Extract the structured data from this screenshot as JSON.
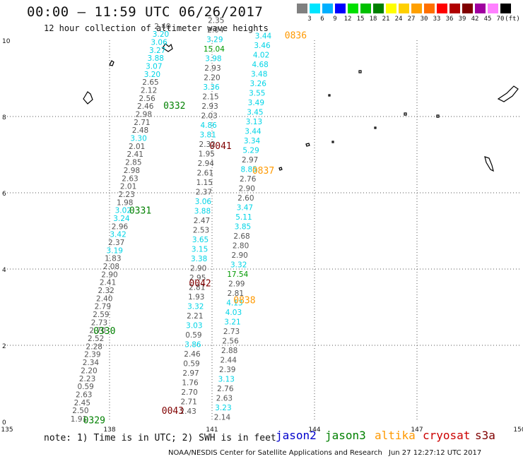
{
  "header": {
    "title": "00:00 – 11:59 UTC 06/26/2017",
    "subtitle": "12 hour collection of altimeter wave heights"
  },
  "scale": {
    "unit": "(ft)",
    "labels": [
      "3",
      "6",
      "9",
      "12",
      "15",
      "18",
      "21",
      "24",
      "27",
      "30",
      "33",
      "36",
      "39",
      "42",
      "45",
      "70"
    ],
    "colors": [
      "#808080",
      "#00e5ff",
      "#00b0ff",
      "#0000ff",
      "#00e000",
      "#00c000",
      "#008000",
      "#ffff00",
      "#ffd000",
      "#ffa000",
      "#ff7000",
      "#ff0000",
      "#b00000",
      "#800000",
      "#a000a0",
      "#ff80ff",
      "#000000"
    ]
  },
  "map": {
    "lon_ticks": [
      "135",
      "138",
      "141",
      "144",
      "147",
      "150"
    ],
    "lat_ticks": [
      "0",
      "2",
      "4",
      "6",
      "8",
      "10"
    ]
  },
  "tracks": [
    {
      "name": "track-jason3-0329",
      "color": "#000000",
      "points": [
        [
          "1.91",
          137.1,
          0.0
        ],
        [
          "2.50",
          137.15,
          0.22
        ],
        [
          "2.45",
          137.2,
          0.43
        ],
        [
          "2.63",
          137.25,
          0.64
        ],
        [
          "0.59",
          137.3,
          0.85
        ],
        [
          "2.23",
          137.35,
          1.06
        ],
        [
          "2.20",
          137.4,
          1.27
        ],
        [
          "2.34",
          137.45,
          1.48
        ],
        [
          "2.39",
          137.5,
          1.69
        ],
        [
          "2.28",
          137.55,
          1.9
        ],
        [
          "2.52",
          137.6,
          2.11
        ],
        [
          "2.70",
          137.65,
          2.32
        ],
        [
          "2.73",
          137.7,
          2.53
        ],
        [
          "2.59",
          137.75,
          2.74
        ],
        [
          "2.79",
          137.8,
          2.95
        ],
        [
          "2.40",
          137.85,
          3.16
        ],
        [
          "2.32",
          137.9,
          3.37
        ],
        [
          "2.41",
          137.95,
          3.58
        ],
        [
          "2.90",
          138.0,
          3.79
        ],
        [
          "2.08",
          138.05,
          4.0
        ],
        [
          "1.83",
          138.1,
          4.21
        ],
        [
          "3.19",
          138.15,
          4.42
        ],
        [
          "2.37",
          138.2,
          4.63
        ],
        [
          "3.42",
          138.25,
          4.84
        ],
        [
          "2.96",
          138.3,
          5.05
        ],
        [
          "3.24",
          138.35,
          5.26
        ],
        [
          "3.02",
          138.4,
          5.47
        ],
        [
          "1.98",
          138.45,
          5.68
        ],
        [
          "2.23",
          138.5,
          5.89
        ],
        [
          "2.01",
          138.55,
          6.1
        ],
        [
          "2.63",
          138.6,
          6.31
        ],
        [
          "2.98",
          138.65,
          6.52
        ],
        [
          "2.85",
          138.7,
          6.73
        ],
        [
          "2.41",
          138.75,
          6.94
        ],
        [
          "2.01",
          138.8,
          7.15
        ],
        [
          "3.30",
          138.85,
          7.36
        ],
        [
          "2.48",
          138.9,
          7.57
        ],
        [
          "2.71",
          138.95,
          7.78
        ],
        [
          "2.98",
          139.0,
          7.99
        ],
        [
          "2.46",
          139.05,
          8.2
        ],
        [
          "2.56",
          139.1,
          8.41
        ],
        [
          "2.12",
          139.15,
          8.62
        ],
        [
          "2.65",
          139.2,
          8.83
        ],
        [
          "3.20",
          139.25,
          9.04
        ],
        [
          "3.07",
          139.3,
          9.25
        ],
        [
          "3.88",
          139.35,
          9.46
        ],
        [
          "3.27",
          139.4,
          9.67
        ],
        [
          "3.06",
          139.45,
          9.88
        ],
        [
          "3.20",
          139.5,
          10.09
        ],
        [
          "2.40",
          139.55,
          10.3
        ]
      ]
    },
    {
      "name": "track-jason3-0331",
      "color": "#000000",
      "points": [
        [
          "2.43",
          140.3,
          0.2
        ],
        [
          "2.71",
          140.32,
          0.45
        ],
        [
          "2.70",
          140.34,
          0.7
        ],
        [
          "1.76",
          140.36,
          0.95
        ],
        [
          "2.97",
          140.38,
          1.2
        ],
        [
          "0.59",
          140.4,
          1.45
        ],
        [
          "2.46",
          140.42,
          1.7
        ],
        [
          "3.86",
          140.44,
          1.95
        ],
        [
          "0.59",
          140.46,
          2.2
        ],
        [
          "3.03",
          140.48,
          2.45
        ],
        [
          "2.21",
          140.5,
          2.7
        ],
        [
          "3.32",
          140.52,
          2.95
        ],
        [
          "1.93",
          140.54,
          3.2
        ],
        [
          "2.81",
          140.56,
          3.45
        ],
        [
          "2.95",
          140.58,
          3.7
        ],
        [
          "2.90",
          140.6,
          3.95
        ],
        [
          "3.38",
          140.62,
          4.2
        ],
        [
          "3.15",
          140.64,
          4.45
        ],
        [
          "3.65",
          140.66,
          4.7
        ],
        [
          "2.53",
          140.68,
          4.95
        ],
        [
          "2.47",
          140.7,
          5.2
        ],
        [
          "3.88",
          140.72,
          5.45
        ],
        [
          "3.06",
          140.74,
          5.7
        ],
        [
          "2.37",
          140.76,
          5.95
        ],
        [
          "1.15",
          140.78,
          6.2
        ],
        [
          "2.61",
          140.8,
          6.45
        ],
        [
          "2.94",
          140.82,
          6.7
        ],
        [
          "1.95",
          140.84,
          6.95
        ],
        [
          "2.32",
          140.86,
          7.2
        ],
        [
          "3.81",
          140.88,
          7.45
        ],
        [
          "4.86",
          140.9,
          7.7
        ],
        [
          "2.03",
          140.92,
          7.95
        ],
        [
          "2.93",
          140.94,
          8.2
        ],
        [
          "2.15",
          140.96,
          8.45
        ],
        [
          "3.36",
          140.98,
          8.7
        ],
        [
          "2.20",
          141.0,
          8.95
        ],
        [
          "2.93",
          141.02,
          9.2
        ],
        [
          "3.98",
          141.04,
          9.45
        ],
        [
          "15.04",
          141.06,
          9.7
        ],
        [
          "3.29",
          141.08,
          9.95
        ],
        [
          "2.04",
          141.1,
          10.2
        ],
        [
          "2.35",
          141.12,
          10.45
        ]
      ]
    },
    {
      "name": "track-cryosat-0043",
      "color": "#000000",
      "points": [
        [
          "2.14",
          141.3,
          0.05
        ],
        [
          "3.23",
          141.33,
          0.3
        ],
        [
          "2.63",
          141.36,
          0.55
        ],
        [
          "2.76",
          141.39,
          0.8
        ],
        [
          "3.13",
          141.42,
          1.05
        ],
        [
          "2.39",
          141.45,
          1.3
        ],
        [
          "2.44",
          141.48,
          1.55
        ],
        [
          "2.88",
          141.51,
          1.8
        ],
        [
          "2.56",
          141.54,
          2.05
        ],
        [
          "2.73",
          141.57,
          2.3
        ],
        [
          "3.21",
          141.6,
          2.55
        ],
        [
          "4.03",
          141.63,
          2.8
        ],
        [
          "4.13",
          141.66,
          3.05
        ],
        [
          "2.81",
          141.69,
          3.3
        ],
        [
          "2.99",
          141.72,
          3.55
        ],
        [
          "17.54",
          141.75,
          3.8
        ],
        [
          "3.32",
          141.78,
          4.05
        ],
        [
          "2.90",
          141.81,
          4.3
        ],
        [
          "2.80",
          141.84,
          4.55
        ],
        [
          "2.68",
          141.87,
          4.8
        ],
        [
          "3.85",
          141.9,
          5.05
        ],
        [
          "5.11",
          141.93,
          5.3
        ],
        [
          "3.47",
          141.96,
          5.55
        ],
        [
          "2.60",
          141.99,
          5.8
        ],
        [
          "2.90",
          142.02,
          6.05
        ],
        [
          "2.76",
          142.05,
          6.3
        ],
        [
          "8.85",
          142.08,
          6.55
        ],
        [
          "2.97",
          142.11,
          6.8
        ],
        [
          "5.29",
          142.14,
          7.05
        ],
        [
          "3.34",
          142.17,
          7.3
        ],
        [
          "3.44",
          142.2,
          7.55
        ],
        [
          "3.13",
          142.23,
          7.8
        ],
        [
          "3.45",
          142.26,
          8.05
        ],
        [
          "3.49",
          142.29,
          8.3
        ],
        [
          "3.55",
          142.32,
          8.55
        ],
        [
          "3.26",
          142.35,
          8.8
        ],
        [
          "3.48",
          142.38,
          9.05
        ],
        [
          "4.68",
          142.41,
          9.3
        ],
        [
          "4.02",
          142.44,
          9.55
        ],
        [
          "3.46",
          142.47,
          9.8
        ],
        [
          "3.44",
          142.5,
          10.05
        ]
      ]
    }
  ],
  "time_labels": [
    {
      "text": "0329",
      "color": "#008000",
      "lon": 137.55,
      "lat": -0.05
    },
    {
      "text": "0330",
      "color": "#008000",
      "lon": 137.85,
      "lat": 2.3
    },
    {
      "text": "0331",
      "color": "#008000",
      "lon": 138.9,
      "lat": 5.45
    },
    {
      "text": "0332",
      "color": "#008000",
      "lon": 139.9,
      "lat": 8.2
    },
    {
      "text": "0043",
      "color": "#800000",
      "lon": 139.85,
      "lat": 0.2
    },
    {
      "text": "0042",
      "color": "#800000",
      "lon": 140.65,
      "lat": 3.55
    },
    {
      "text": "0041",
      "color": "#800000",
      "lon": 141.25,
      "lat": 7.15
    },
    {
      "text": "0838",
      "color": "#ff9900",
      "lon": 141.95,
      "lat": 3.1
    },
    {
      "text": "0837",
      "color": "#ff9900",
      "lon": 142.5,
      "lat": 6.5
    },
    {
      "text": "0836",
      "color": "#ff9900",
      "lon": 143.45,
      "lat": 10.05
    }
  ],
  "footer": {
    "note": "note: 1) Time is in UTC; 2) SWH is in feet",
    "satellites": [
      {
        "label": "jason2",
        "color": "#0000cc"
      },
      {
        "label": "jason3",
        "color": "#008000"
      },
      {
        "label": "altika",
        "color": "#ff9900"
      },
      {
        "label": "cryosat",
        "color": "#cc0000"
      },
      {
        "label": "s3a",
        "color": "#800000"
      }
    ],
    "credit": "NOAA/NESDIS Center for Satellite Applications and Research",
    "timestamp": "Jun 27 12:27:12 UTC 2017"
  }
}
